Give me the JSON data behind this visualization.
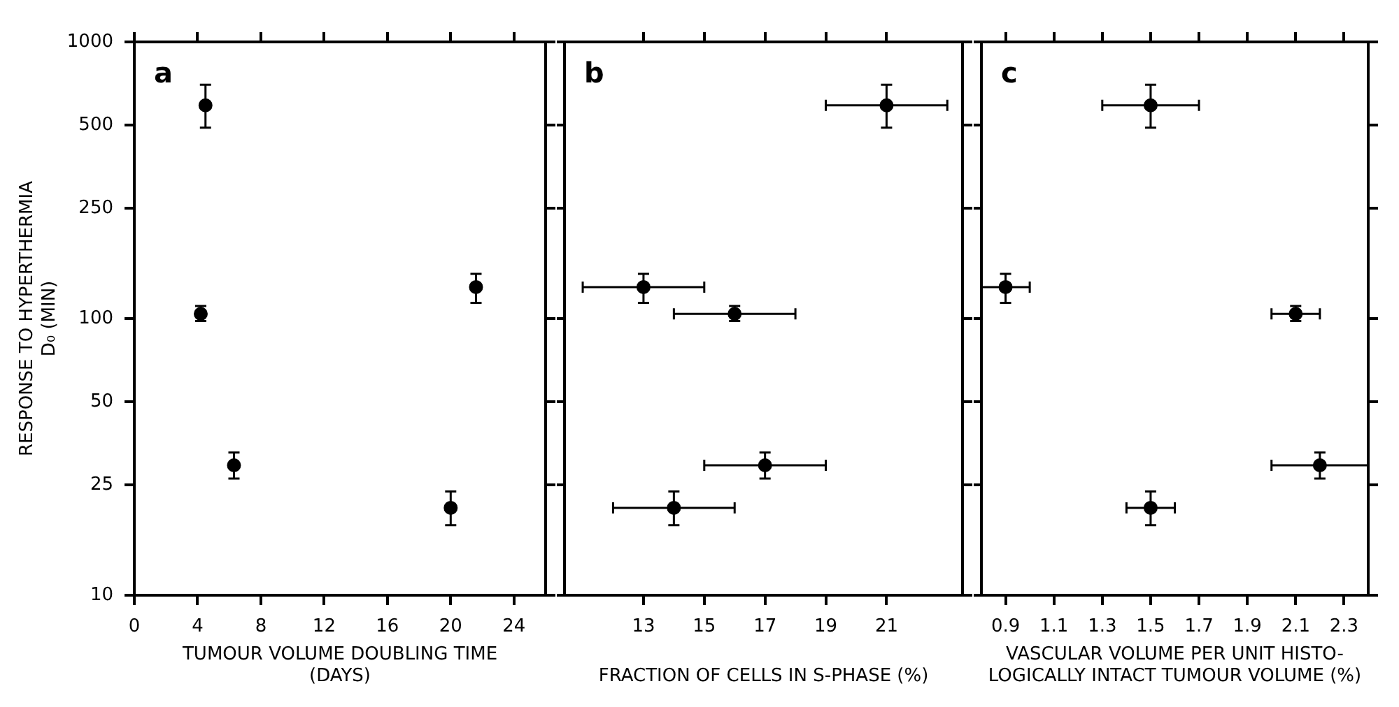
{
  "chart_data": [
    {
      "type": "scatter",
      "title": "a",
      "xlabel": "TUMOUR VOLUME DOUBLING TIME\n(DAYS)",
      "ylabel": "RESPONSE TO HYPERTHERMIA\nD₀ (MIN)",
      "xlim": [
        0,
        26
      ],
      "xticks": [
        0,
        4,
        8,
        12,
        16,
        20,
        24
      ],
      "ylim": [
        10,
        1000
      ],
      "yticks": [
        10,
        25,
        50,
        100,
        250,
        500,
        1000
      ],
      "log": "y",
      "grid": false,
      "marker": "circle",
      "series": [
        {
          "color": "#000000",
          "x": [
            4.5,
            4.2,
            6.3,
            20.0,
            21.6
          ],
          "values": [
            590,
            104,
            29.5,
            20.7,
            130
          ],
          "errors": [
            [
              490,
              700
            ],
            [
              98,
              111
            ],
            [
              26.4,
              32.8
            ],
            [
              17.9,
              23.7
            ],
            [
              114,
              145
            ]
          ]
        }
      ]
    },
    {
      "type": "scatter",
      "title": "b",
      "xlabel": "FRACTION OF CELLS IN S-PHASE (%)",
      "xlim": [
        10.4,
        23.5
      ],
      "xticks": [
        13,
        15,
        17,
        19,
        21
      ],
      "ylim": [
        10,
        1000
      ],
      "yticks": [
        10,
        25,
        50,
        100,
        250,
        500,
        1000
      ],
      "log": "y",
      "grid": false,
      "marker": "circle",
      "tick_labels": "x",
      "series": [
        {
          "color": "#000000",
          "x": [
            21,
            13,
            16,
            17,
            14
          ],
          "values": [
            590,
            130,
            104,
            29.5,
            20.7
          ],
          "errors": [
            [
              490,
              700
            ],
            [
              114,
              145
            ],
            [
              98,
              111
            ],
            [
              26.4,
              32.8
            ],
            [
              17.9,
              23.7
            ]
          ],
          "xerrors": [
            [
              19,
              23
            ],
            [
              11,
              15
            ],
            [
              14,
              18
            ],
            [
              15,
              19
            ],
            [
              12,
              16
            ]
          ]
        }
      ]
    },
    {
      "type": "scatter",
      "title": "c",
      "xlabel": "VASCULAR VOLUME PER UNIT HISTO-\nLOGICALLY INTACT TUMOUR VOLUME (%)",
      "xlim": [
        0.8,
        2.4
      ],
      "xticks": [
        0.9,
        1.1,
        1.3,
        1.5,
        1.7,
        1.9,
        2.1,
        2.3
      ],
      "ylim": [
        10,
        1000
      ],
      "yticks": [
        10,
        25,
        50,
        100,
        250,
        500,
        1000
      ],
      "log": "y",
      "grid": false,
      "marker": "circle",
      "tick_labels": "x",
      "series": [
        {
          "color": "#000000",
          "x": [
            1.5,
            0.9,
            2.1,
            2.2,
            1.5
          ],
          "values": [
            590,
            130,
            104,
            29.5,
            20.7
          ],
          "errors": [
            [
              490,
              700
            ],
            [
              114,
              145
            ],
            [
              98,
              111
            ],
            [
              26.4,
              32.8
            ],
            [
              17.9,
              23.7
            ]
          ],
          "xerrors": [
            [
              1.3,
              1.7
            ],
            [
              0.8,
              1.0
            ],
            [
              2.0,
              2.2
            ],
            [
              2.0,
              2.4
            ],
            [
              1.4,
              1.6
            ]
          ]
        }
      ]
    }
  ]
}
